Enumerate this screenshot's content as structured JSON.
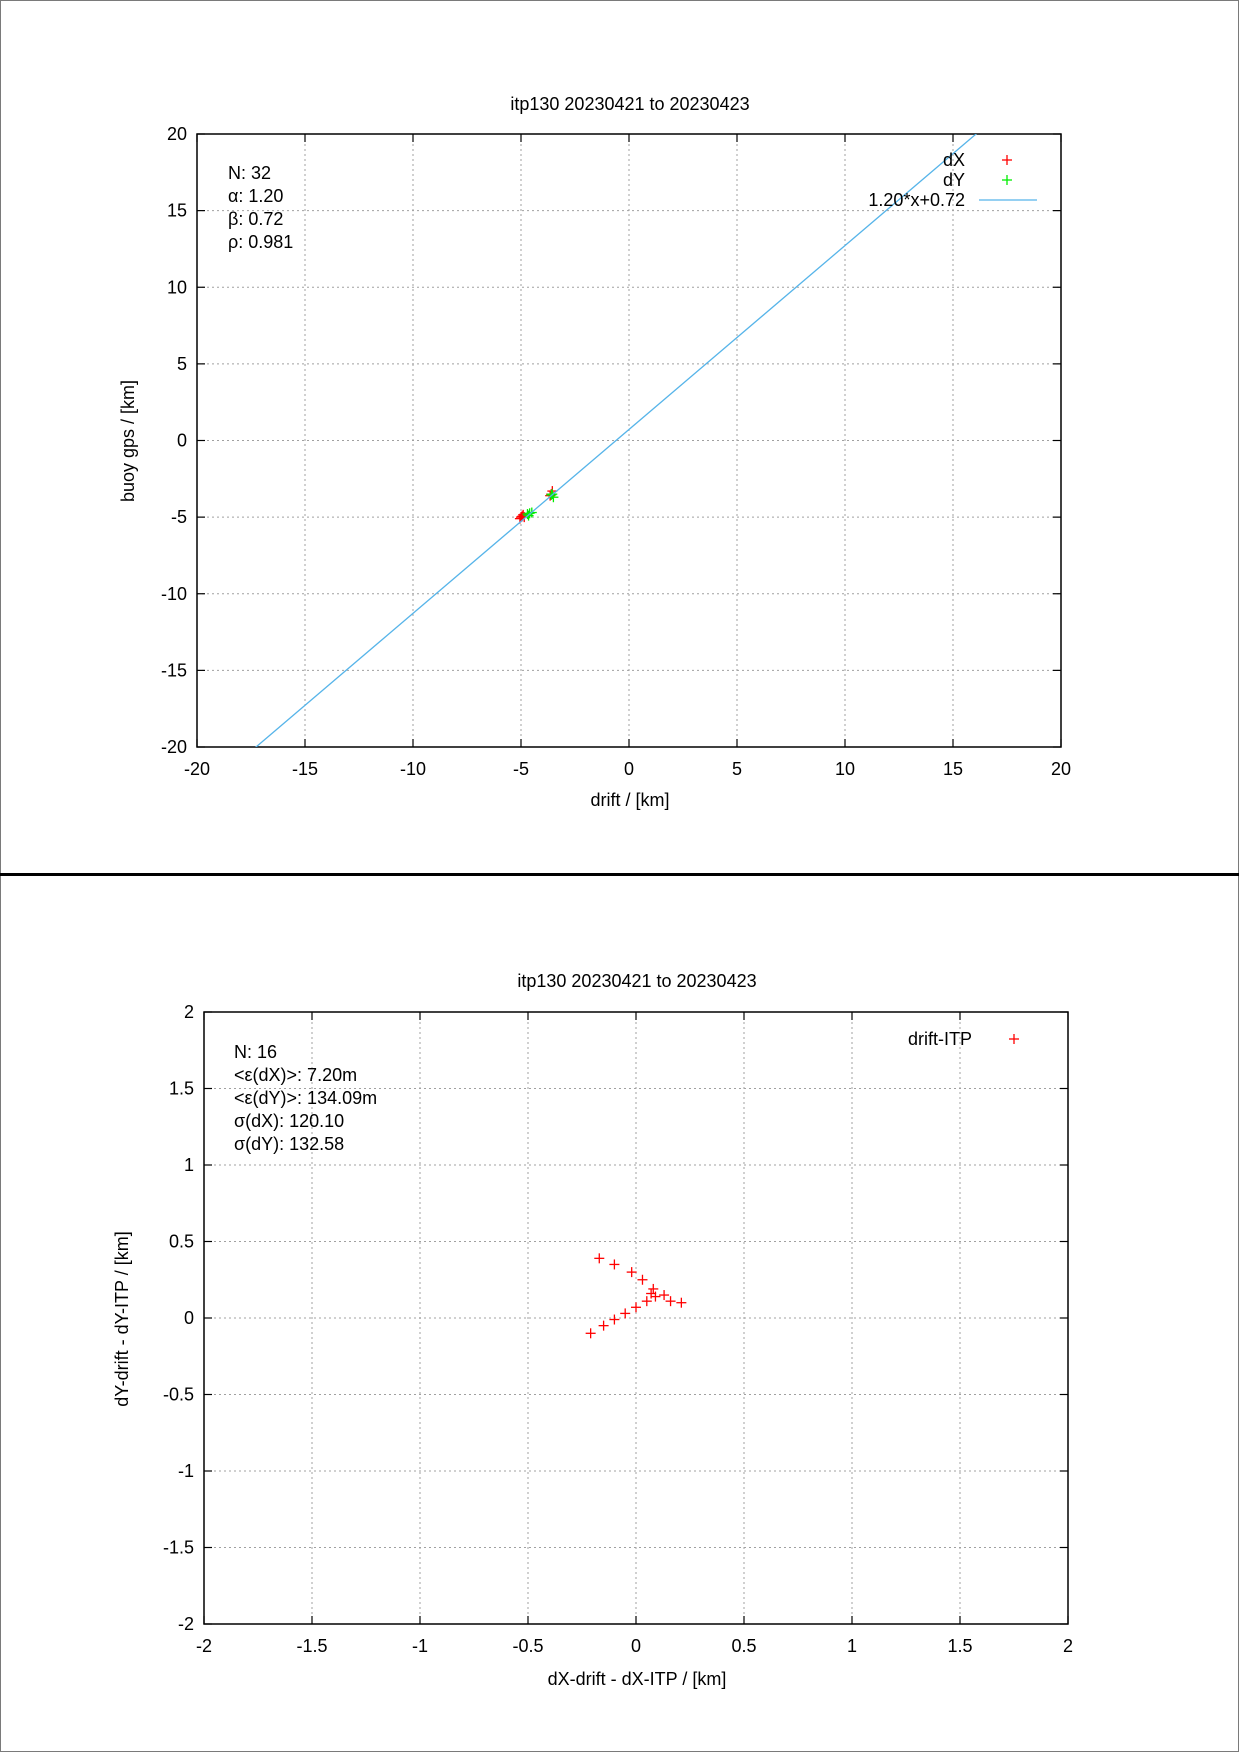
{
  "chart_data": [
    {
      "type": "scatter",
      "title": "itp130 20230421 to 20230423",
      "xlabel": "drift / [km]",
      "ylabel": "buoy gps / [km]",
      "xlim": [
        -20,
        20
      ],
      "ylim": [
        -20,
        20
      ],
      "xticks": [
        -20,
        -15,
        -10,
        -5,
        0,
        5,
        10,
        15,
        20
      ],
      "yticks": [
        -20,
        -15,
        -10,
        -5,
        0,
        5,
        10,
        15,
        20
      ],
      "grid": true,
      "legend_position": "top-right",
      "stats": [
        "N: 32",
        "α: 1.20",
        "β: 0.72",
        "ρ: 0.981"
      ],
      "series": [
        {
          "name": "dX",
          "color": "#ff0000",
          "marker": "+",
          "points": [
            [
              -5.0,
              -5.0
            ],
            [
              -4.95,
              -4.95
            ],
            [
              -4.9,
              -4.85
            ],
            [
              -5.05,
              -5.1
            ],
            [
              -4.85,
              -5.0
            ],
            [
              -3.6,
              -3.5
            ],
            [
              -3.55,
              -3.3
            ],
            [
              -3.65,
              -3.6
            ]
          ]
        },
        {
          "name": "dY",
          "color": "#00ee00",
          "marker": "+",
          "points": [
            [
              -4.7,
              -4.8
            ],
            [
              -4.6,
              -4.75
            ],
            [
              -4.5,
              -4.7
            ],
            [
              -4.65,
              -4.9
            ],
            [
              -3.55,
              -3.5
            ],
            [
              -3.5,
              -3.7
            ],
            [
              -3.6,
              -3.55
            ]
          ]
        },
        {
          "name": "1.20*x+0.72",
          "color": "#56b4e9",
          "type": "line",
          "slope": 1.2,
          "intercept": 0.72
        }
      ]
    },
    {
      "type": "scatter",
      "title": "itp130 20230421 to 20230423",
      "xlabel": "dX-drift - dX-ITP / [km]",
      "ylabel": "dY-drift - dY-ITP / [km]",
      "xlim": [
        -2,
        2
      ],
      "ylim": [
        -2,
        2
      ],
      "xticks": [
        -2,
        -1.5,
        -1,
        -0.5,
        0,
        0.5,
        1,
        1.5,
        2
      ],
      "yticks": [
        -2,
        -1.5,
        -1,
        -0.5,
        0,
        0.5,
        1,
        1.5,
        2
      ],
      "grid": true,
      "legend_position": "top-right",
      "stats": [
        "N: 16",
        "<ε(dX)>:  7.20m",
        "<ε(dY)>: 134.09m",
        "σ(dX):  120.10",
        "σ(dY):  132.58"
      ],
      "series": [
        {
          "name": "drift-ITP",
          "color": "#ff0000",
          "marker": "+",
          "points": [
            [
              -0.17,
              0.39
            ],
            [
              -0.1,
              0.35
            ],
            [
              -0.02,
              0.3
            ],
            [
              0.03,
              0.25
            ],
            [
              0.08,
              0.19
            ],
            [
              0.07,
              0.16
            ],
            [
              0.13,
              0.15
            ],
            [
              0.16,
              0.11
            ],
            [
              0.21,
              0.1
            ],
            [
              0.09,
              0.14
            ],
            [
              0.05,
              0.11
            ],
            [
              0.0,
              0.07
            ],
            [
              -0.05,
              0.03
            ],
            [
              -0.1,
              -0.01
            ],
            [
              -0.15,
              -0.05
            ],
            [
              -0.21,
              -0.1
            ]
          ]
        }
      ]
    }
  ]
}
